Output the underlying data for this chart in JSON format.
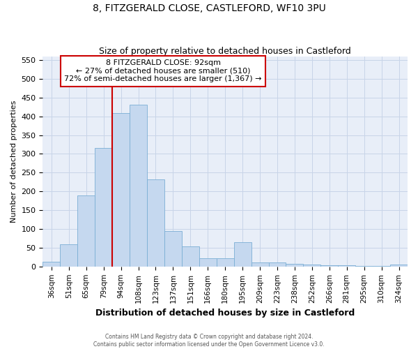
{
  "title": "8, FITZGERALD CLOSE, CASTLEFORD, WF10 3PU",
  "subtitle": "Size of property relative to detached houses in Castleford",
  "xlabel": "Distribution of detached houses by size in Castleford",
  "ylabel": "Number of detached properties",
  "categories": [
    "36sqm",
    "51sqm",
    "65sqm",
    "79sqm",
    "94sqm",
    "108sqm",
    "123sqm",
    "137sqm",
    "151sqm",
    "166sqm",
    "180sqm",
    "195sqm",
    "209sqm",
    "223sqm",
    "238sqm",
    "252sqm",
    "266sqm",
    "281sqm",
    "295sqm",
    "310sqm",
    "324sqm"
  ],
  "values": [
    12,
    60,
    190,
    315,
    408,
    432,
    233,
    95,
    53,
    22,
    22,
    65,
    10,
    10,
    7,
    5,
    3,
    3,
    2,
    2,
    5
  ],
  "bar_color": "#c5d8ef",
  "bar_edge_color": "#7aaed4",
  "grid_color": "#c8d4e8",
  "background_color": "#e8eef8",
  "property_size_index": 4,
  "property_line_color": "#cc0000",
  "annotation_line1": "8 FITZGERALD CLOSE: 92sqm",
  "annotation_line2": "← 27% of detached houses are smaller (510)",
  "annotation_line3": "72% of semi-detached houses are larger (1,367) →",
  "annotation_box_color": "#cc0000",
  "ylim": [
    0,
    560
  ],
  "yticks": [
    0,
    50,
    100,
    150,
    200,
    250,
    300,
    350,
    400,
    450,
    500,
    550
  ],
  "footer1": "Contains HM Land Registry data © Crown copyright and database right 2024.",
  "footer2": "Contains public sector information licensed under the Open Government Licence v3.0."
}
